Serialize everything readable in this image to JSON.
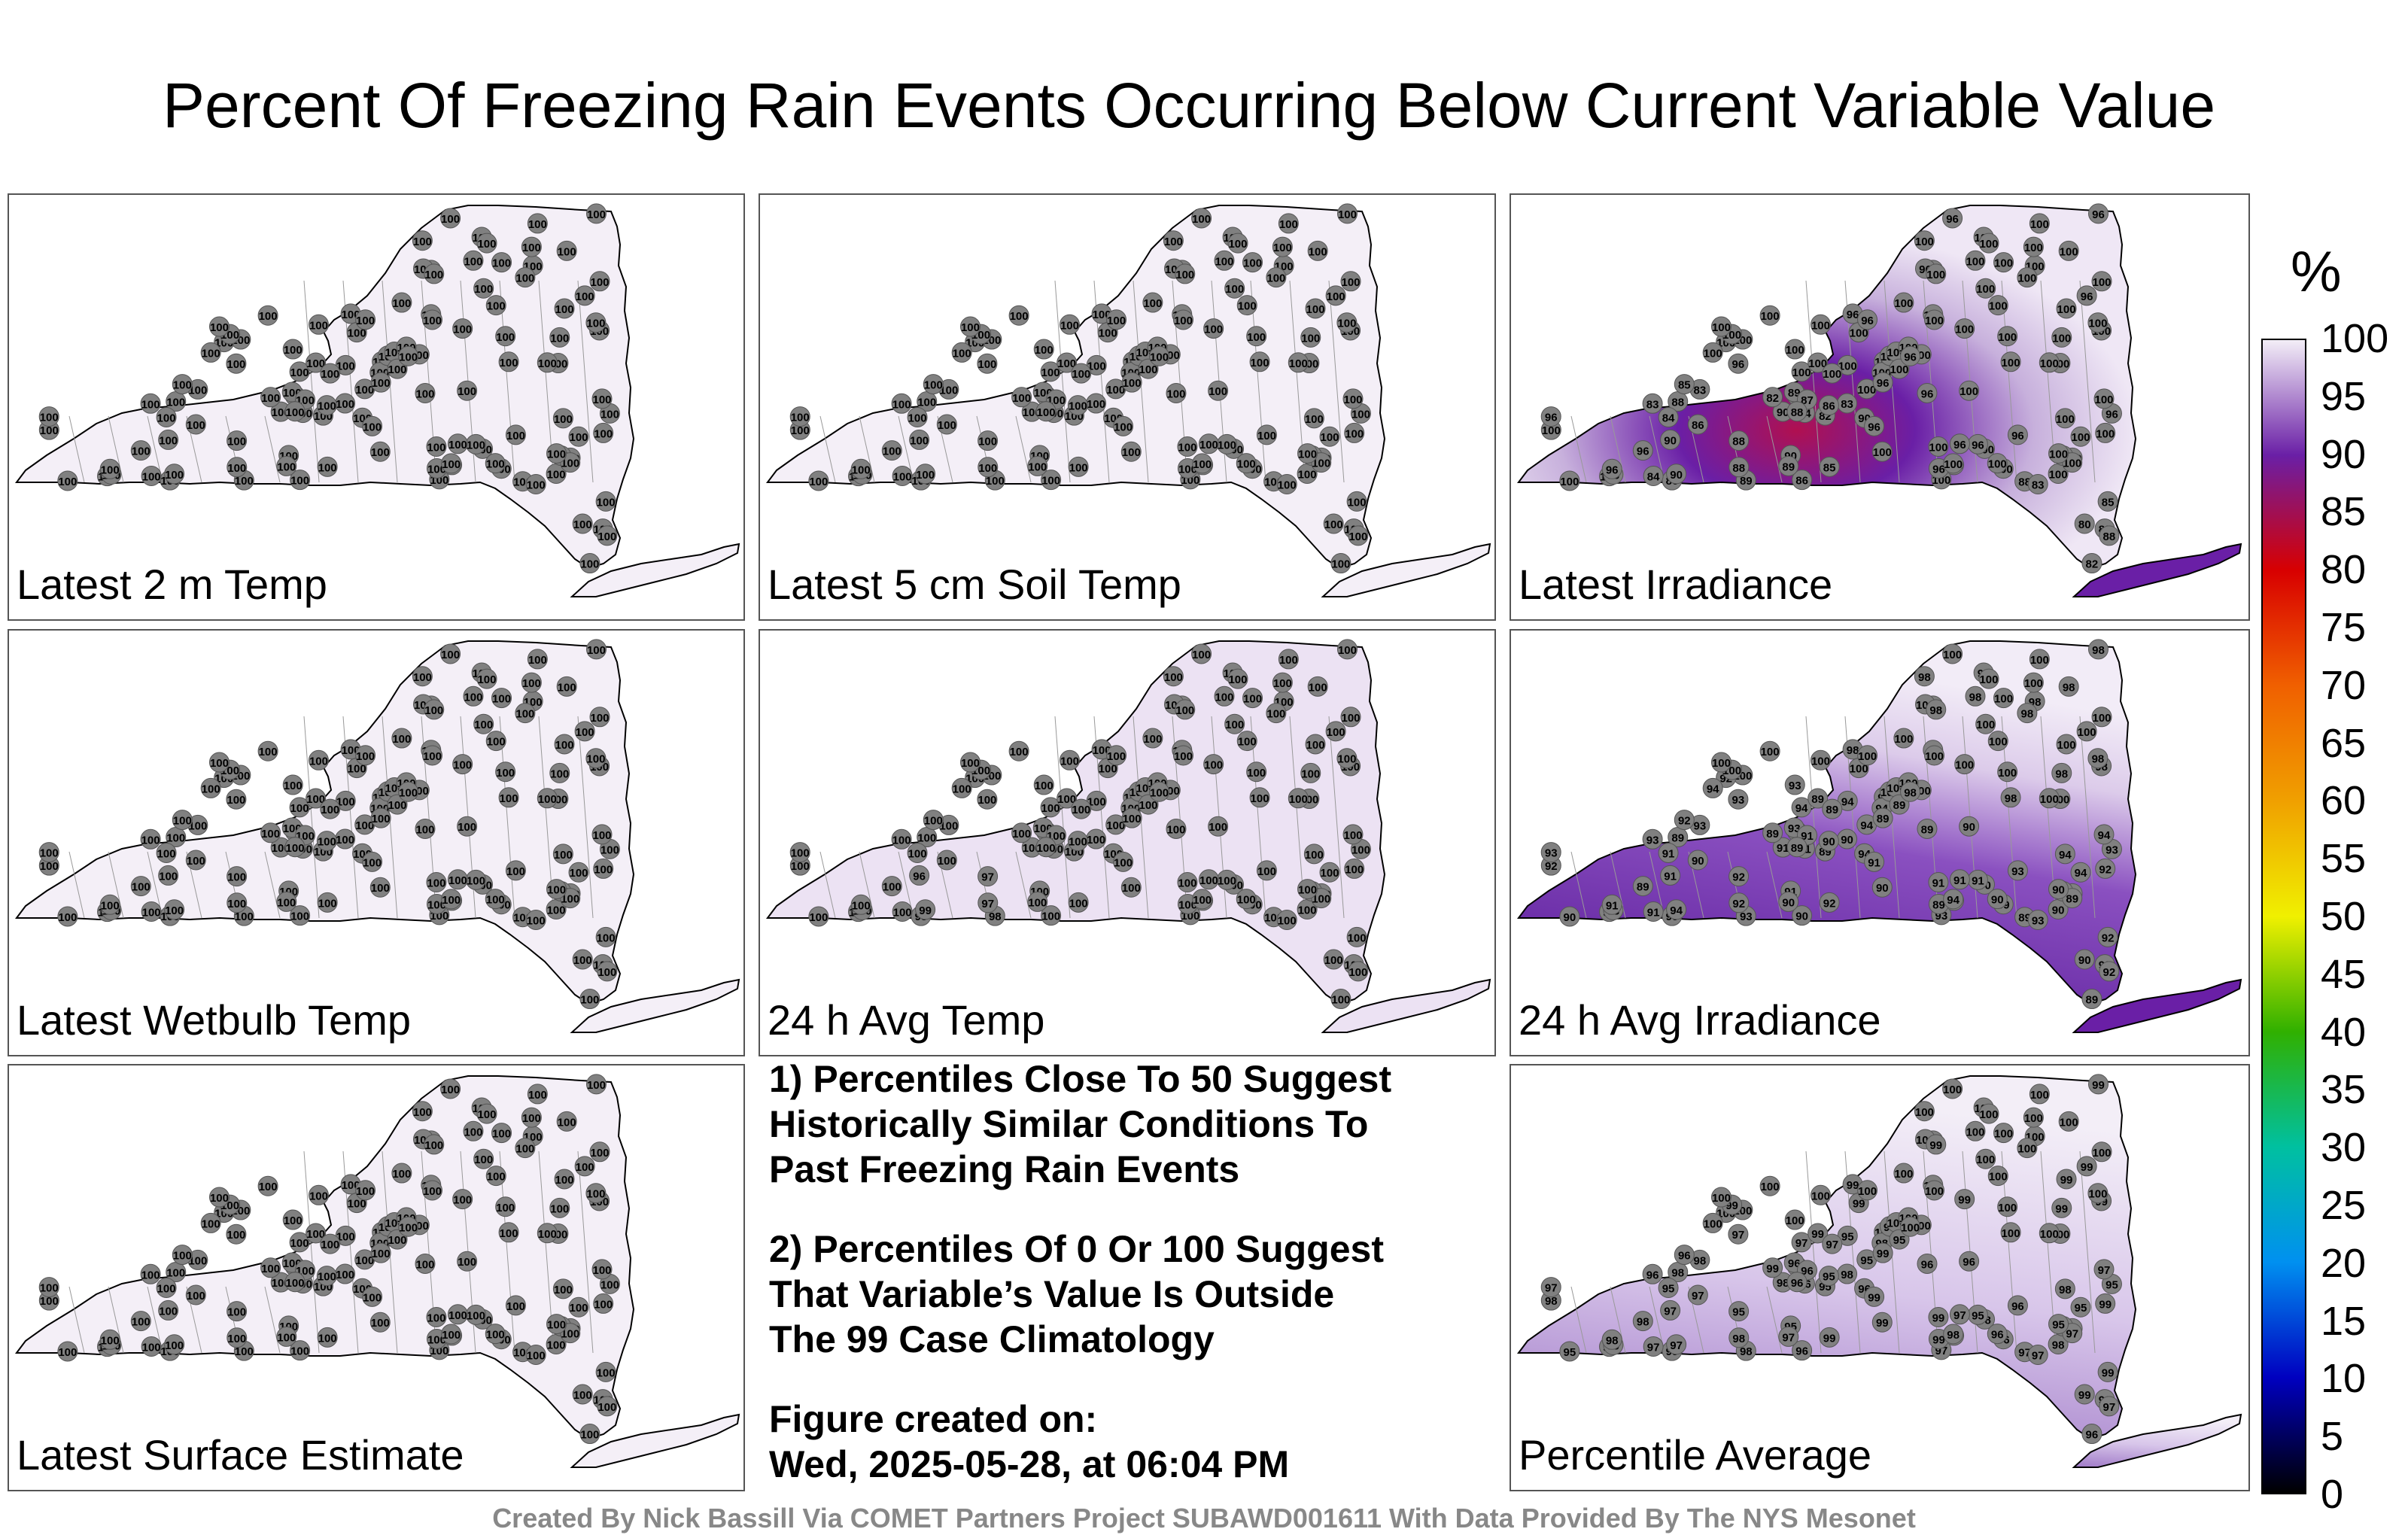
{
  "title": "Percent Of Freezing Rain Events Occurring Below Current Variable Value",
  "panels": [
    {
      "label": "Latest 2 m Temp",
      "mode": "flat"
    },
    {
      "label": "Latest 5 cm Soil Temp",
      "mode": "flat"
    },
    {
      "label": "Latest Irradiance",
      "mode": "irr"
    },
    {
      "label": "Latest Wetbulb Temp",
      "mode": "flat"
    },
    {
      "label": "24 h Avg Temp",
      "mode": "avgtemp"
    },
    {
      "label": "24 h Avg Irradiance",
      "mode": "avgirr"
    },
    {
      "label": "Latest Surface Estimate",
      "mode": "flat"
    },
    {
      "label": "Percentile Average",
      "mode": "pavg"
    }
  ],
  "notes": [
    [
      "1) Percentiles Close To 50 Suggest",
      "Historically Similar Conditions To",
      "Past Freezing Rain Events"
    ],
    [
      "2) Percentiles Of 0 Or 100 Suggest",
      "That Variable’s Value Is Outside",
      "The 99 Case Climatology"
    ],
    [
      "Figure created on:",
      "Wed, 2025-05-28, at 06:04 PM"
    ]
  ],
  "colorbar": {
    "unit": "%",
    "ticks": [
      "100",
      "95",
      "90",
      "85",
      "80",
      "75",
      "70",
      "65",
      "60",
      "55",
      "50",
      "45",
      "40",
      "35",
      "30",
      "25",
      "20",
      "15",
      "10",
      "5",
      "0"
    ],
    "colors": {
      "100": "#f3eef7",
      "90": "#6a1fa6",
      "80": "#d80000",
      "70": "#f06000",
      "60": "#f0a000",
      "50": "#f0f000",
      "40": "#30b000",
      "30": "#00c0a0",
      "20": "#0090f0",
      "10": "#0000c0",
      "0": "#000000"
    }
  },
  "credit": "Created By Nick Bassill Via COMET Partners Project SUBAWD001611 With Data Provided By The NYS Mesonet"
}
